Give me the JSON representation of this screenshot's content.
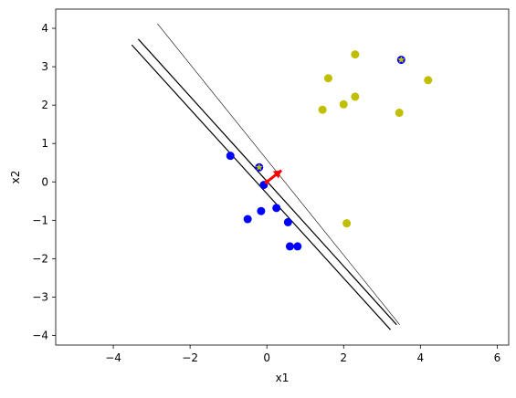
{
  "chart_data": {
    "type": "scatter",
    "title": "",
    "xlabel": "x1",
    "ylabel": "x2",
    "xlim": [
      -5.5,
      6.3
    ],
    "ylim": [
      -4.25,
      4.5
    ],
    "xticks": [
      -4,
      -2,
      0,
      2,
      4,
      6
    ],
    "yticks": [
      -4,
      -3,
      -2,
      -1,
      0,
      1,
      2,
      3,
      4
    ],
    "xtick_labels": [
      "−4",
      "−2",
      "0",
      "2",
      "4",
      "6"
    ],
    "ytick_labels": [
      "−4",
      "−3",
      "−2",
      "−1",
      "0",
      "1",
      "2",
      "3",
      "4"
    ],
    "grid": false,
    "legend": "none",
    "series": [
      {
        "color": "#0000ff",
        "marker": "circle",
        "points": [
          [
            -0.95,
            0.68
          ],
          [
            -0.2,
            0.38
          ],
          [
            -0.08,
            -0.08
          ],
          [
            0.25,
            -0.68
          ],
          [
            -0.15,
            -0.76
          ],
          [
            -0.5,
            -0.97
          ],
          [
            0.55,
            -1.05
          ],
          [
            0.6,
            -1.68
          ],
          [
            0.8,
            -1.68
          ],
          [
            3.5,
            3.18
          ]
        ]
      },
      {
        "color": "#bfbf00",
        "marker": "circle",
        "points": [
          [
            2.3,
            3.32
          ],
          [
            1.6,
            2.7
          ],
          [
            4.2,
            2.65
          ],
          [
            2.3,
            2.22
          ],
          [
            2.0,
            2.02
          ],
          [
            1.45,
            1.88
          ],
          [
            3.45,
            1.8
          ],
          [
            2.08,
            -1.08
          ]
        ]
      }
    ],
    "highlighted_points": [
      {
        "x": 3.5,
        "y": 3.18,
        "color": "#bfbf00",
        "marker": "star"
      },
      {
        "x": -0.2,
        "y": 0.38,
        "color": "#bfbf00",
        "marker": "star"
      }
    ],
    "lines": [
      {
        "color": "#000000",
        "width": 1.2,
        "from": [
          -3.52,
          3.57
        ],
        "to": [
          3.22,
          -3.85
        ]
      },
      {
        "color": "#000000",
        "width": 1.2,
        "from": [
          -3.35,
          3.72
        ],
        "to": [
          3.38,
          -3.72
        ]
      },
      {
        "color": "#000000",
        "width": 0.6,
        "from": [
          -2.85,
          4.12
        ],
        "to": [
          3.46,
          -3.72
        ]
      }
    ],
    "arrow": {
      "color": "#ff0000",
      "from": [
        0.0,
        0.0
      ],
      "to": [
        0.38,
        0.3
      ]
    }
  }
}
